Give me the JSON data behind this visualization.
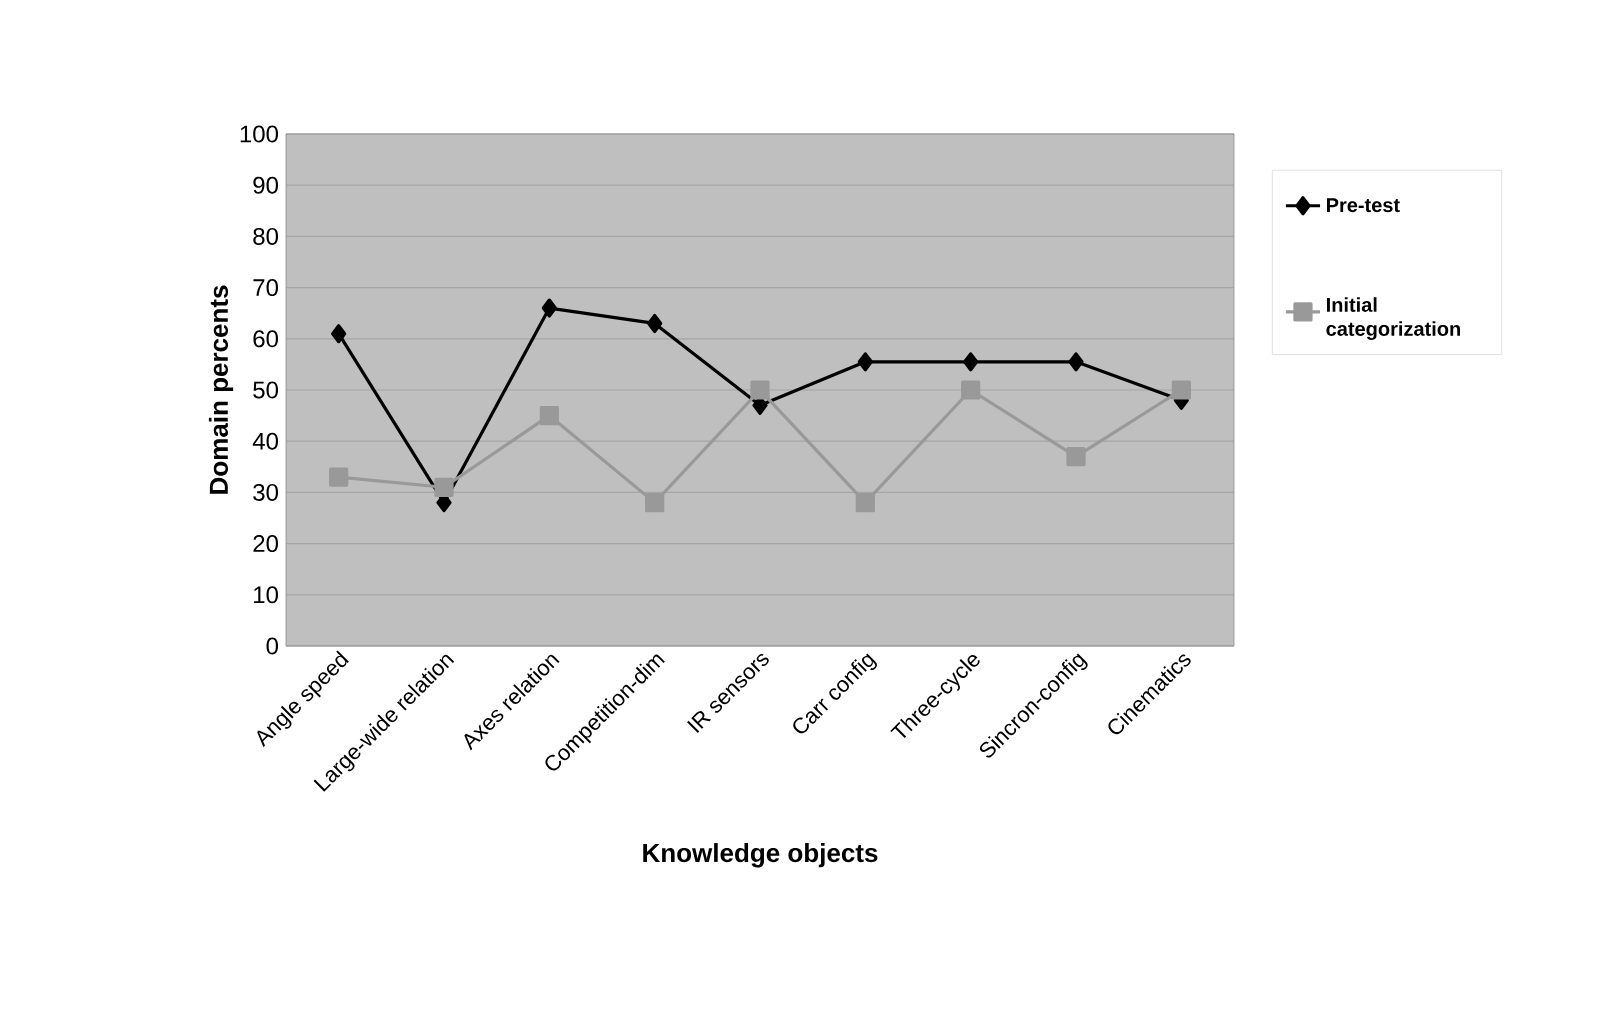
{
  "chart_data": {
    "type": "line",
    "xlabel": "Knowledge objects",
    "ylabel": "Domain percents",
    "categories": [
      "Angle speed",
      "Large-wide relation",
      "Axes relation",
      "Competition-dim",
      "IR sensors",
      "Carr config",
      "Three-cycle",
      "Sincron-config",
      "Cinematics"
    ],
    "series": [
      {
        "name": "Pre-test",
        "color": "#000000",
        "marker": "diamond",
        "values": [
          61,
          28,
          66,
          63,
          47,
          55.5,
          55.5,
          55.5,
          48
        ]
      },
      {
        "name": "Initial categorization",
        "color": "#999999",
        "marker": "square",
        "values": [
          33,
          31,
          45,
          28,
          50,
          28,
          50,
          37,
          50
        ]
      }
    ],
    "ylim": [
      0,
      100
    ],
    "yticks": [
      0,
      10,
      20,
      30,
      40,
      50,
      60,
      70,
      80,
      90,
      100
    ],
    "grid": "y",
    "legend": "right",
    "line_style": "solid"
  }
}
